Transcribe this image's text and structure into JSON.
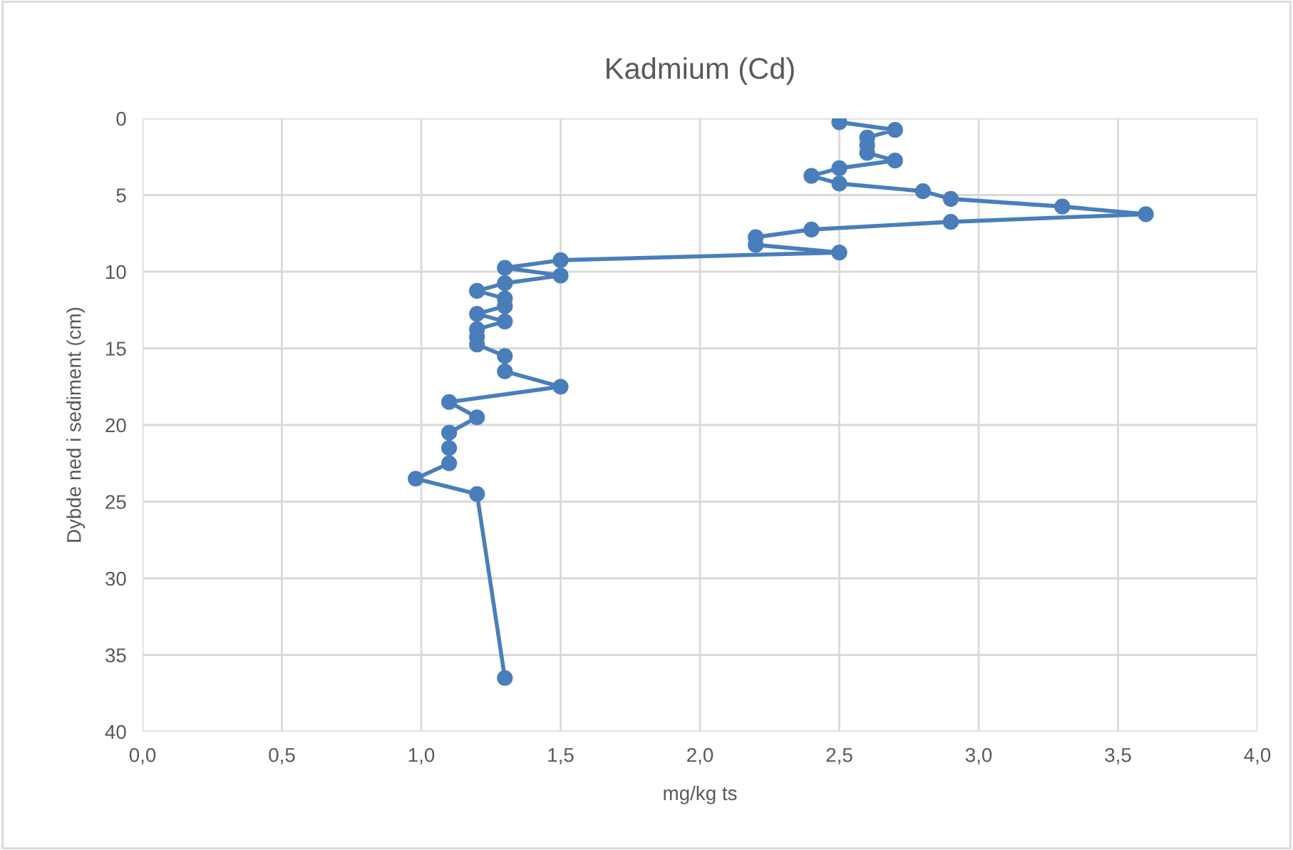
{
  "chart_data": {
    "type": "line",
    "title": "Kadmium (Cd)",
    "xlabel": "mg/kg ts",
    "ylabel": "Dybde ned i sediment (cm)",
    "series": [
      {
        "color": "#4a7ebb",
        "x": [
          2.5,
          2.7,
          2.6,
          2.6,
          2.6,
          2.7,
          2.5,
          2.4,
          2.5,
          2.8,
          2.9,
          3.3,
          3.6,
          2.9,
          2.4,
          2.2,
          2.2,
          2.5,
          1.5,
          1.3,
          1.5,
          1.3,
          1.2,
          1.3,
          1.3,
          1.2,
          1.3,
          1.2,
          1.2,
          1.2,
          1.3,
          1.3,
          1.5,
          1.1,
          1.2,
          1.1,
          1.1,
          1.1,
          0.98,
          1.2,
          1.3
        ],
        "values": [
          0.25,
          0.75,
          1.25,
          1.75,
          2.25,
          2.75,
          3.25,
          3.75,
          4.25,
          4.75,
          5.25,
          5.75,
          6.25,
          6.75,
          7.25,
          7.75,
          8.25,
          8.75,
          9.25,
          9.75,
          10.25,
          10.75,
          11.25,
          11.75,
          12.25,
          12.75,
          13.25,
          13.75,
          14.25,
          14.75,
          15.5,
          16.5,
          17.5,
          18.5,
          19.5,
          20.5,
          21.5,
          22.5,
          23.5,
          24.5,
          36.5
        ]
      }
    ],
    "xlim": [
      0,
      4
    ],
    "xticks": [
      {
        "value": 0,
        "label": "0,0"
      },
      {
        "value": 0.5,
        "label": "0,5"
      },
      {
        "value": 1,
        "label": "1,0"
      },
      {
        "value": 1.5,
        "label": "1,5"
      },
      {
        "value": 2,
        "label": "2,0"
      },
      {
        "value": 2.5,
        "label": "2,5"
      },
      {
        "value": 3,
        "label": "3,0"
      },
      {
        "value": 3.5,
        "label": "3,5"
      },
      {
        "value": 4,
        "label": "4,0"
      }
    ],
    "ylim": [
      40,
      0
    ],
    "yticks": [
      0,
      5,
      10,
      15,
      20,
      25,
      30,
      35,
      40
    ],
    "grid": true,
    "legend": false,
    "marker": "circle",
    "line_style": "solid"
  }
}
